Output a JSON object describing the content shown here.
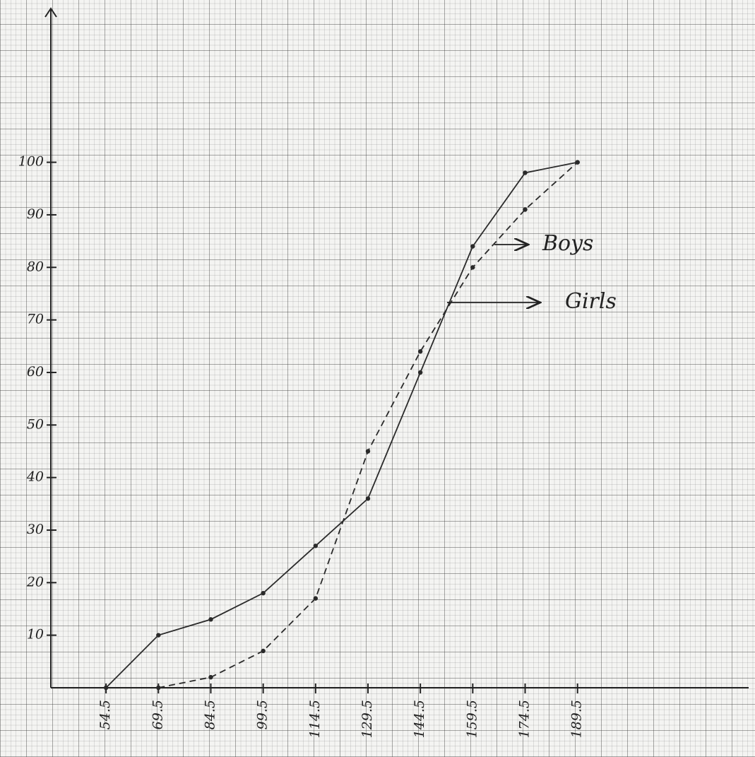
{
  "chart_data": {
    "type": "line",
    "x": [
      54.5,
      69.5,
      84.5,
      99.5,
      114.5,
      129.5,
      144.5,
      159.5,
      174.5,
      189.5
    ],
    "series": [
      {
        "name": "Girls",
        "color": "#2a2a2a",
        "linestyle": "solid",
        "values": [
          0,
          10,
          13,
          18,
          27,
          36,
          60,
          84,
          98,
          100
        ]
      },
      {
        "name": "Boys",
        "color": "#2a2a2a",
        "linestyle": "dashed",
        "values": [
          null,
          0,
          2,
          7,
          17,
          45,
          64,
          80,
          91,
          100
        ]
      }
    ],
    "xlim": [
      38.7,
      238.5
    ],
    "xticks": [
      54.5,
      69.5,
      84.5,
      99.5,
      114.5,
      129.5,
      144.5,
      159.5,
      174.5,
      189.5
    ],
    "ylim": [
      0,
      129
    ],
    "yticks": [
      10,
      20,
      30,
      40,
      50,
      60,
      70,
      80,
      90,
      100
    ]
  }
}
